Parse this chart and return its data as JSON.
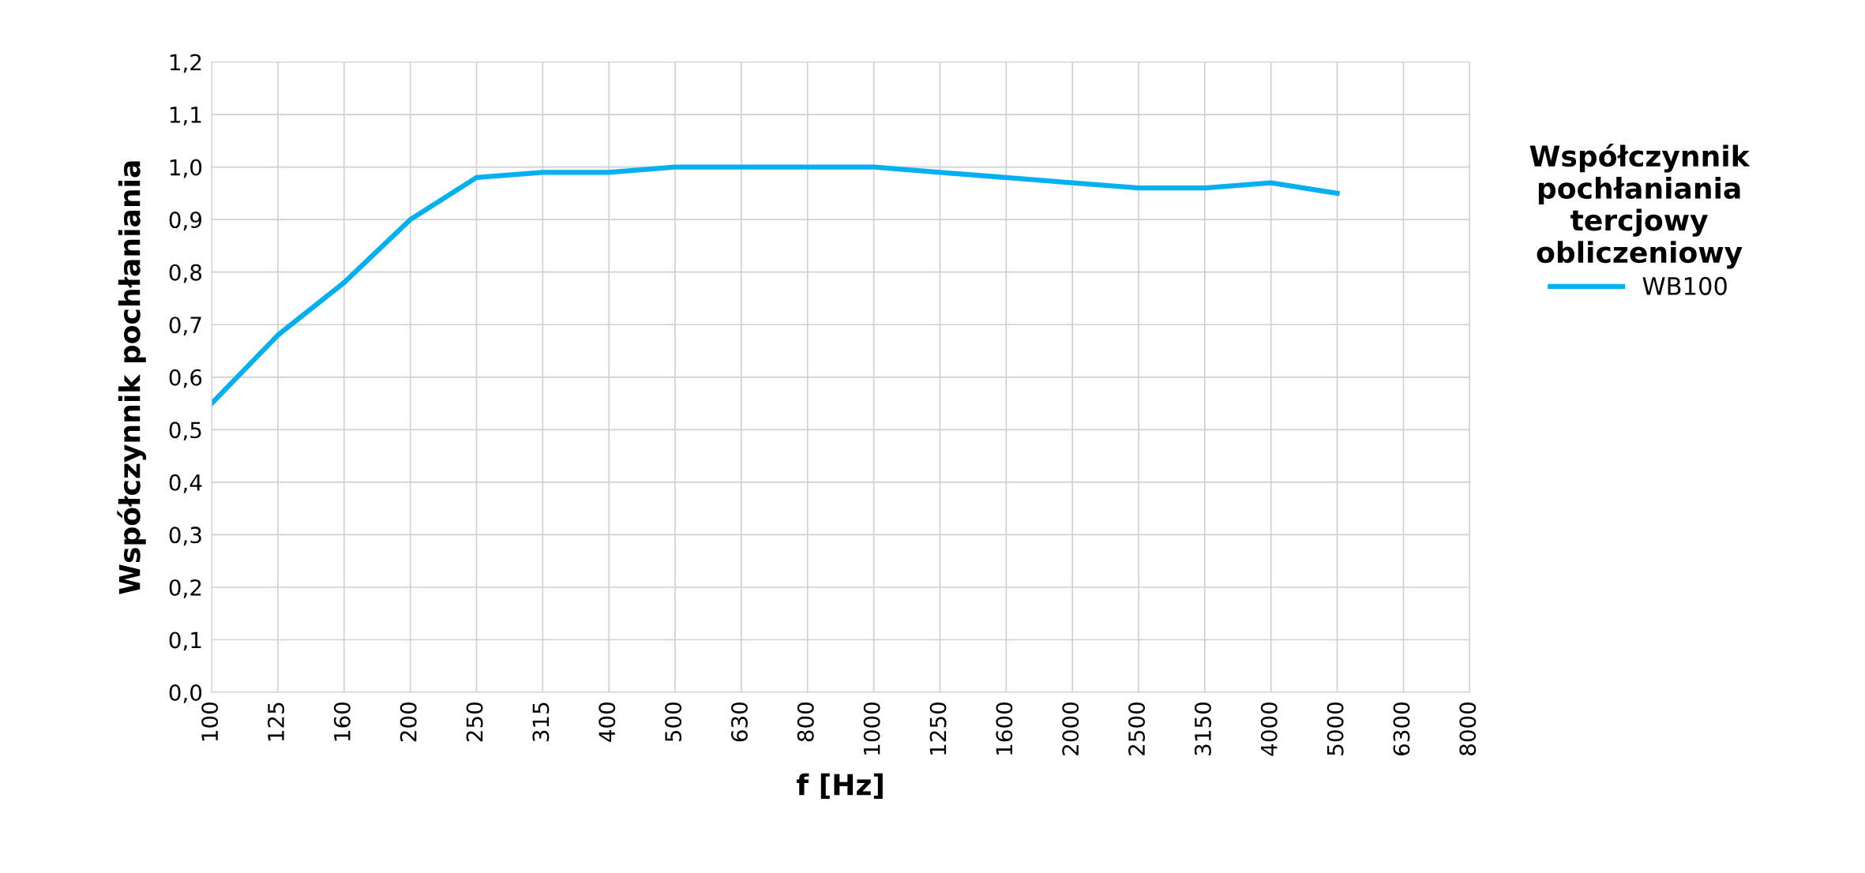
{
  "chart_data": {
    "type": "line",
    "ylabel": "Współczynnik pochłaniania",
    "xlabel": "f [Hz]",
    "legend_title": "Współczynnik pochłaniania tercjowy obliczeniowy",
    "categories": [
      "100",
      "125",
      "160",
      "200",
      "250",
      "315",
      "400",
      "500",
      "630",
      "800",
      "1000",
      "1250",
      "1600",
      "2000",
      "2500",
      "3150",
      "4000",
      "5000",
      "6300",
      "8000"
    ],
    "series": [
      {
        "name": "WB100",
        "color": "#00b0f0",
        "values": [
          0.55,
          0.68,
          0.78,
          0.9,
          0.98,
          0.99,
          0.99,
          1.0,
          1.0,
          1.0,
          1.0,
          0.99,
          0.98,
          0.97,
          0.96,
          0.96,
          0.97,
          0.95,
          null,
          null
        ]
      }
    ],
    "ylim": [
      0,
      1.2
    ],
    "yticks": [
      {
        "value": 0,
        "label": "0,0"
      },
      {
        "value": 0.1,
        "label": "0,1"
      },
      {
        "value": 0.2,
        "label": "0,2"
      },
      {
        "value": 0.3,
        "label": "0,3"
      },
      {
        "value": 0.4,
        "label": "0,4"
      },
      {
        "value": 0.5,
        "label": "0,5"
      },
      {
        "value": 0.6,
        "label": "0,6"
      },
      {
        "value": 0.7,
        "label": "0,7"
      },
      {
        "value": 0.8,
        "label": "0,8"
      },
      {
        "value": 0.9,
        "label": "0,9"
      },
      {
        "value": 1.0,
        "label": "1,0"
      },
      {
        "value": 1.1,
        "label": "1,1"
      },
      {
        "value": 1.2,
        "label": "1,2"
      }
    ],
    "grid": true,
    "legend": "right",
    "marker": "none",
    "line_style": "solid"
  }
}
